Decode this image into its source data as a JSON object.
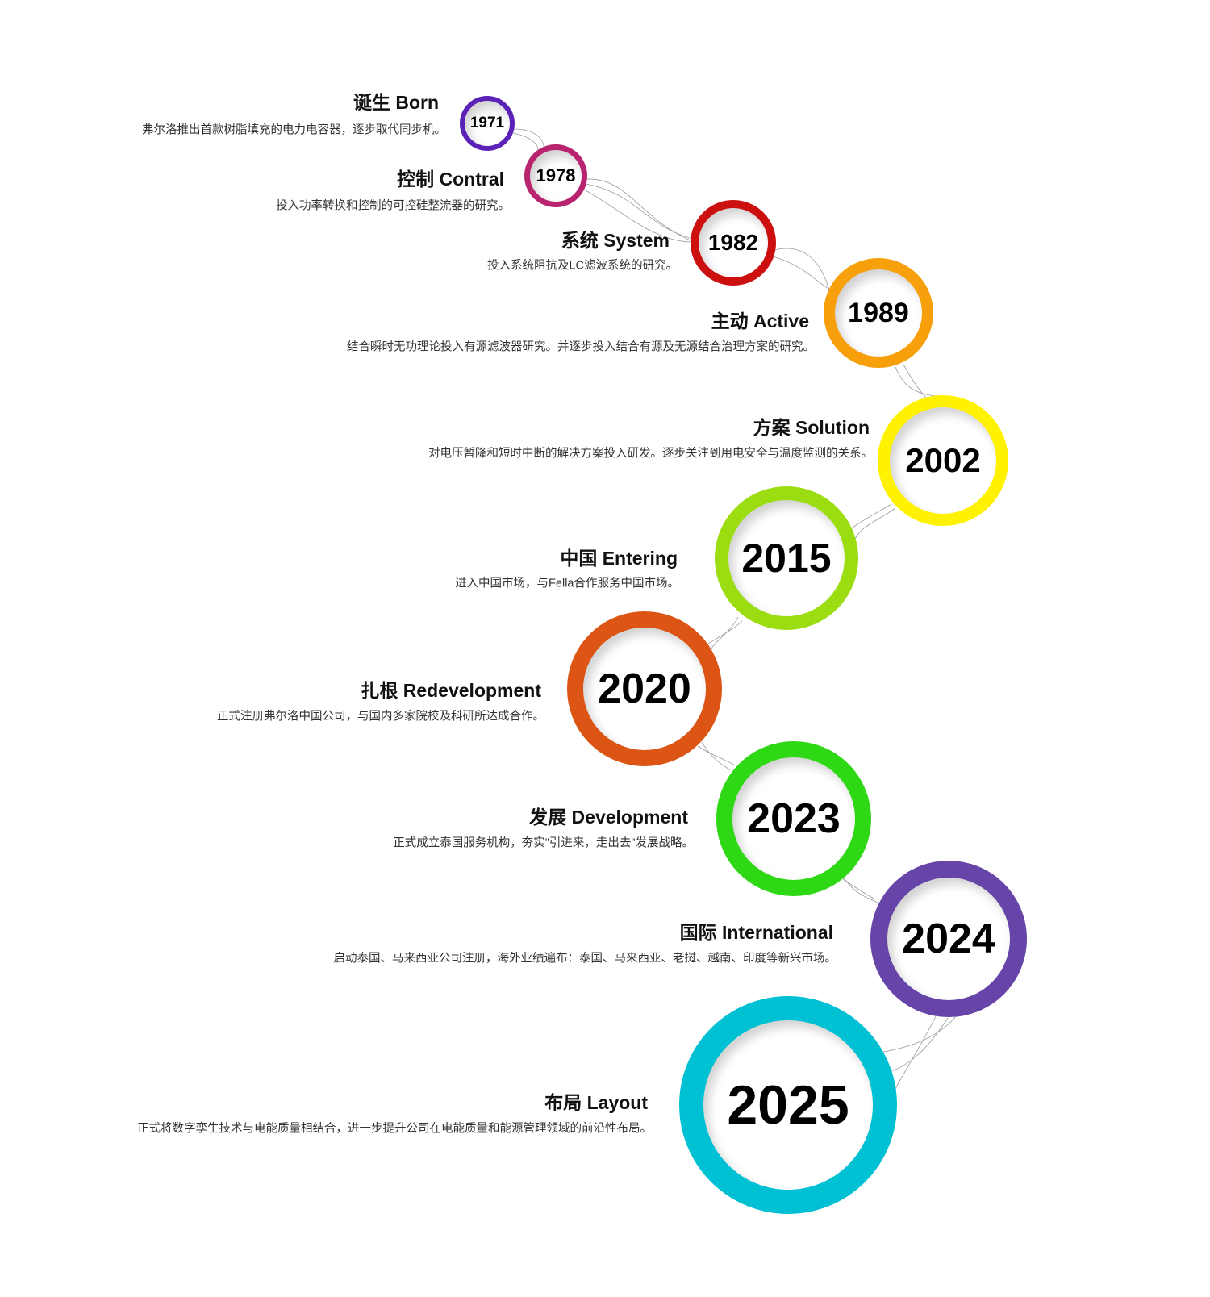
{
  "milestones": [
    {
      "year": "1971",
      "title": "诞生 Born",
      "desc": "弗尔洛推出首款树脂填充的电力电容器，逐步取代同步机。",
      "color": "#5b22b8"
    },
    {
      "year": "1978",
      "title": "控制 Contral",
      "desc": "投入功率转换和控制的可控硅整流器的研究。",
      "color": "#b8246e"
    },
    {
      "year": "1982",
      "title": "系统 System",
      "desc": "投入系统阻抗及LC滤波系统的研究。",
      "color": "#cc1010"
    },
    {
      "year": "1989",
      "title": "主动 Active",
      "desc": "结合瞬时无功理论投入有源滤波器研究。并逐步投入结合有源及无源结合治理方案的研究。",
      "color": "#f7a00c"
    },
    {
      "year": "2002",
      "title": "方案 Solution",
      "desc": "对电压暂降和短时中断的解决方案投入研发。逐步关注到用电安全与温度监测的关系。",
      "color": "#fff200"
    },
    {
      "year": "2015",
      "title": "中国 Entering",
      "desc": "进入中国市场，与Fella合作服务中国市场。",
      "color": "#9bdd10"
    },
    {
      "year": "2020",
      "title": "扎根 Redevelopment",
      "desc": "正式注册弗尔洛中国公司，与国内多家院校及科研所达成合作。",
      "color": "#dd5515"
    },
    {
      "year": "2023",
      "title": "发展 Development",
      "desc": "正式成立泰国服务机构，夯实\"引进来，走出去\"发展战略。",
      "color": "#2ed814"
    },
    {
      "year": "2024",
      "title": "国际 International",
      "desc": "启动泰国、马来西亚公司注册，海外业绩遍布：泰国、马来西亚、老挝、越南、印度等新兴市场。",
      "color": "#6644a8"
    },
    {
      "year": "2025",
      "title": "布局 Layout",
      "desc": "正式将数字孪生技术与电能质量相结合，进一步提升公司在电能质量和能源管理领域的前沿性布局。",
      "color": "#00c0d4"
    }
  ]
}
